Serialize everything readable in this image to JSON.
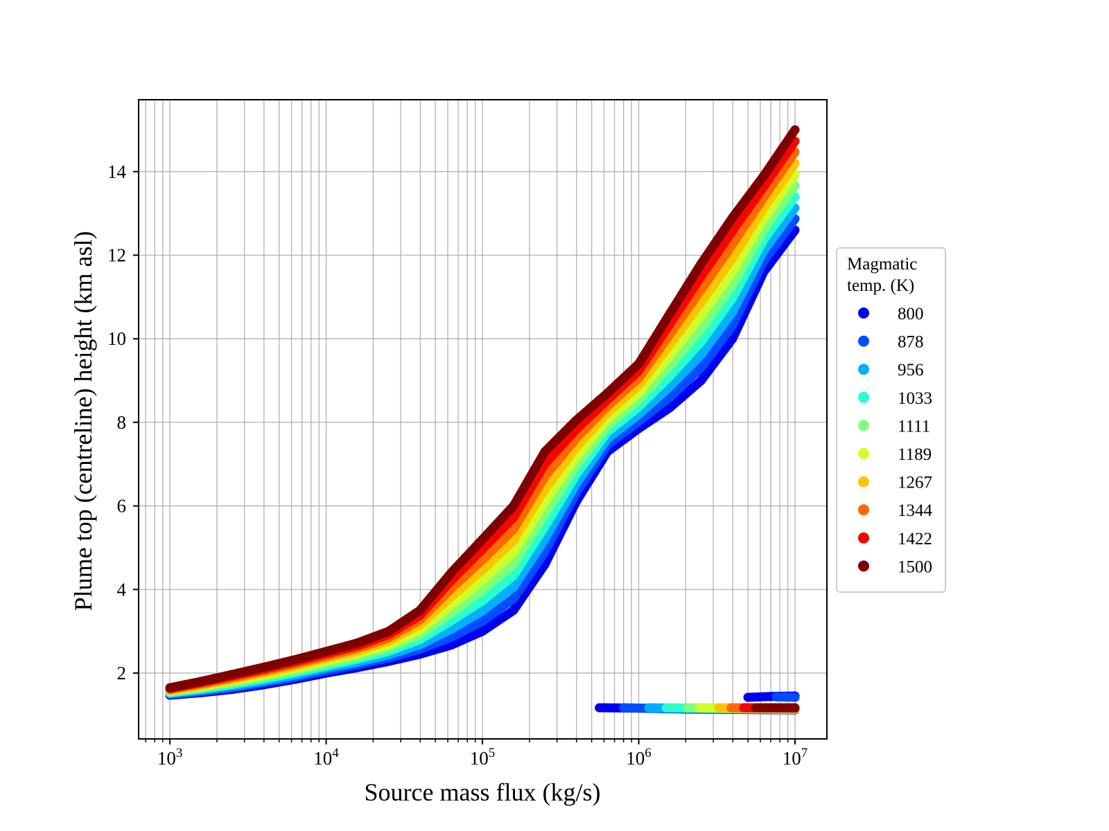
{
  "chart_data": {
    "type": "scatter",
    "title": "",
    "xlabel": "Source mass flux (kg/s)",
    "ylabel": "Plume top (centreline) height (km asl)",
    "xscale": "log",
    "xlim": [
      631,
      16000000
    ],
    "ylim": [
      0.425,
      15.72
    ],
    "grid": true,
    "x_ticks": [
      1000,
      10000,
      100000,
      1000000,
      10000000
    ],
    "x_tick_labels": [
      "10^3",
      "10^4",
      "10^5",
      "10^6",
      "10^7"
    ],
    "y_ticks": [
      2,
      4,
      6,
      8,
      10,
      12,
      14
    ],
    "y_tick_labels": [
      "2",
      "4",
      "6",
      "8",
      "10",
      "12",
      "14"
    ],
    "legend": {
      "title_lines": [
        "Magmatic",
        "temp. (K)"
      ],
      "placement": "outside-right"
    },
    "x": [
      1000,
      1580,
      2510,
      3980,
      6310,
      10000,
      15800,
      25100,
      39800,
      63100,
      100000,
      158000,
      251000,
      398000,
      631000,
      1000000,
      1580000,
      2510000,
      3980000,
      6310000,
      10000000
    ],
    "series": [
      {
        "name": "800",
        "color": "#0000f1",
        "y": [
          1.47,
          1.53,
          1.61,
          1.72,
          1.85,
          2.0,
          2.13,
          2.28,
          2.45,
          2.67,
          3.0,
          3.5,
          4.6,
          6.1,
          7.3,
          7.85,
          8.35,
          9.0,
          10.0,
          11.6,
          12.6
        ],
        "lower": [
          [
            [
              560000,
              1.17
            ],
            [
              1000000,
              1.16
            ],
            [
              2000000,
              1.14
            ],
            [
              4000000,
              1.13
            ],
            [
              10000000,
              1.12
            ]
          ],
          [
            [
              5000000,
              1.42
            ],
            [
              7000000,
              1.44
            ],
            [
              10000000,
              1.45
            ]
          ]
        ]
      },
      {
        "name": "878",
        "color": "#004cff",
        "y": [
          1.49,
          1.56,
          1.65,
          1.77,
          1.9,
          2.06,
          2.2,
          2.36,
          2.57,
          2.86,
          3.24,
          3.78,
          4.9,
          6.32,
          7.46,
          8.02,
          8.6,
          9.31,
          10.32,
          11.86,
          12.87
        ],
        "lower": [
          [
            [
              800000,
              1.17
            ],
            [
              1500000,
              1.15
            ],
            [
              3000000,
              1.14
            ],
            [
              10000000,
              1.12
            ]
          ],
          [
            [
              7600000,
              1.43
            ],
            [
              10000000,
              1.42
            ]
          ]
        ]
      },
      {
        "name": "956",
        "color": "#00b0ff",
        "y": [
          1.51,
          1.59,
          1.69,
          1.81,
          1.95,
          2.12,
          2.26,
          2.44,
          2.68,
          3.05,
          3.49,
          4.06,
          5.2,
          6.53,
          7.61,
          8.19,
          8.85,
          9.62,
          10.64,
          12.11,
          13.13
        ],
        "lower": [
          [
            [
              1160000,
              1.17
            ],
            [
              3000000,
              1.15
            ],
            [
              10000000,
              1.13
            ]
          ]
        ]
      },
      {
        "name": "1033",
        "color": "#29ffce",
        "y": [
          1.53,
          1.62,
          1.73,
          1.86,
          2.01,
          2.17,
          2.33,
          2.52,
          2.8,
          3.25,
          3.73,
          4.33,
          5.5,
          6.75,
          7.77,
          8.37,
          9.1,
          9.93,
          10.97,
          12.37,
          13.4
        ],
        "lower": [
          [
            [
              1500000,
              1.17
            ],
            [
              4000000,
              1.15
            ],
            [
              10000000,
              1.14
            ]
          ]
        ]
      },
      {
        "name": "1111",
        "color": "#7dff7a",
        "y": [
          1.55,
          1.65,
          1.77,
          1.91,
          2.06,
          2.23,
          2.39,
          2.6,
          2.92,
          3.44,
          3.98,
          4.61,
          5.8,
          6.97,
          7.92,
          8.54,
          9.35,
          10.24,
          11.29,
          12.62,
          13.67
        ],
        "lower": [
          [
            [
              2040000,
              1.17
            ],
            [
              5000000,
              1.15
            ],
            [
              10000000,
              1.14
            ]
          ]
        ]
      },
      {
        "name": "1189",
        "color": "#ceff29",
        "y": [
          1.57,
          1.68,
          1.81,
          1.95,
          2.11,
          2.29,
          2.46,
          2.68,
          3.03,
          3.63,
          4.22,
          4.89,
          6.1,
          7.18,
          8.08,
          8.71,
          9.6,
          10.56,
          11.61,
          12.88,
          13.93
        ],
        "lower": [
          [
            [
              2450000,
              1.17
            ],
            [
              5000000,
              1.16
            ],
            [
              10000000,
              1.15
            ]
          ]
        ]
      },
      {
        "name": "1267",
        "color": "#ffc400",
        "y": [
          1.59,
          1.71,
          1.85,
          2.0,
          2.16,
          2.35,
          2.52,
          2.76,
          3.15,
          3.82,
          4.47,
          5.17,
          6.4,
          7.4,
          8.23,
          8.88,
          9.85,
          10.87,
          11.93,
          13.13,
          14.2
        ],
        "lower": [
          [
            [
              3250000,
              1.17
            ],
            [
              6000000,
              1.16
            ],
            [
              10000000,
              1.15
            ]
          ]
        ]
      },
      {
        "name": "1344",
        "color": "#ff6800",
        "y": [
          1.61,
          1.74,
          1.89,
          2.05,
          2.22,
          2.4,
          2.59,
          2.84,
          3.27,
          4.02,
          4.71,
          5.44,
          6.7,
          7.62,
          8.39,
          9.06,
          10.1,
          11.18,
          12.26,
          13.39,
          14.47
        ],
        "lower": [
          [
            [
              3900000,
              1.17
            ],
            [
              7000000,
              1.16
            ],
            [
              10000000,
              1.16
            ]
          ]
        ]
      },
      {
        "name": "1422",
        "color": "#f10800",
        "y": [
          1.63,
          1.77,
          1.93,
          2.09,
          2.27,
          2.46,
          2.65,
          2.92,
          3.38,
          4.21,
          4.96,
          5.72,
          7.0,
          7.83,
          8.54,
          9.23,
          10.35,
          11.49,
          12.58,
          13.64,
          14.73
        ],
        "lower": [
          [
            [
              4700000,
              1.17
            ],
            [
              7500000,
              1.17
            ],
            [
              10000000,
              1.16
            ]
          ]
        ]
      },
      {
        "name": "1500",
        "color": "#7f0000",
        "y": [
          1.65,
          1.8,
          1.97,
          2.14,
          2.32,
          2.52,
          2.72,
          3.0,
          3.5,
          4.4,
          5.2,
          6.0,
          7.3,
          8.05,
          8.7,
          9.4,
          10.6,
          11.8,
          12.9,
          13.9,
          15.0
        ],
        "lower": [
          [
            [
              5600000,
              1.17
            ],
            [
              8000000,
              1.17
            ],
            [
              10000000,
              1.17
            ]
          ]
        ]
      }
    ]
  }
}
